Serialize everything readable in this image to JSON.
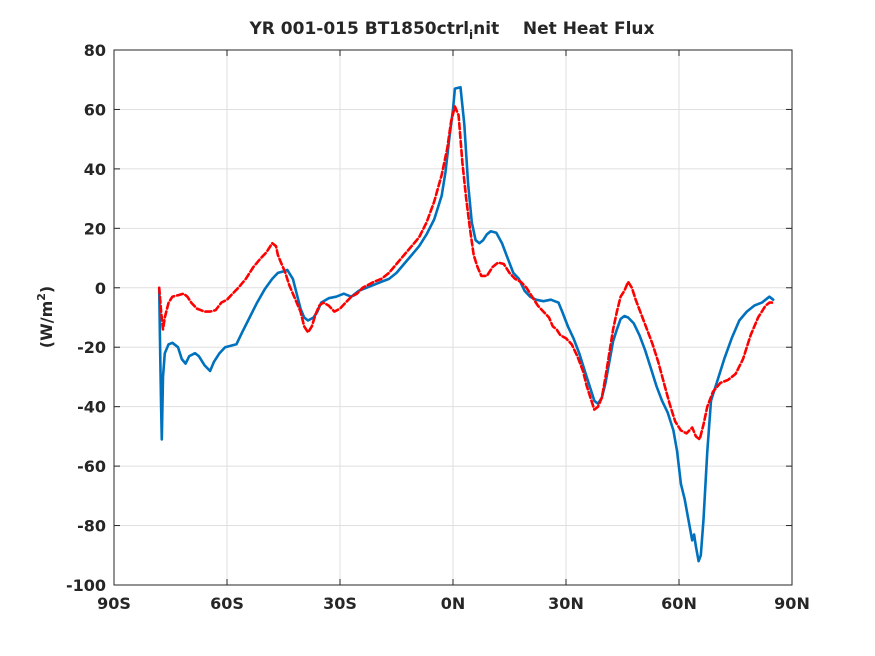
{
  "chart_data": {
    "type": "line",
    "title": "YR 001-015 BT1850ctrl_init    Net Heat Flux",
    "title_parts": {
      "main": "YR 001-015 BT1850ctrl",
      "subscript": "i",
      "rest": "nit    Net Heat Flux"
    },
    "xlabel": "",
    "ylabel": "(W/m2)",
    "ylabel_parts": {
      "before": "(W/m",
      "superscript": "2",
      "after": ")"
    },
    "xlim": [
      -90,
      90
    ],
    "ylim": [
      -100,
      80
    ],
    "grid": true,
    "x_ticks": [
      {
        "value": -90,
        "label": "90S"
      },
      {
        "value": -60,
        "label": "60S"
      },
      {
        "value": -30,
        "label": "30S"
      },
      {
        "value": 0,
        "label": "0N"
      },
      {
        "value": 30,
        "label": "30N"
      },
      {
        "value": 60,
        "label": "60N"
      },
      {
        "value": 90,
        "label": "90N"
      }
    ],
    "y_ticks": [
      {
        "value": 80,
        "label": "80"
      },
      {
        "value": 60,
        "label": "60"
      },
      {
        "value": 40,
        "label": "40"
      },
      {
        "value": 20,
        "label": "20"
      },
      {
        "value": 0,
        "label": "0"
      },
      {
        "value": -20,
        "label": "-20"
      },
      {
        "value": -40,
        "label": "-40"
      },
      {
        "value": -60,
        "label": "-60"
      },
      {
        "value": -80,
        "label": "-80"
      },
      {
        "value": -100,
        "label": "-100"
      }
    ],
    "series": [
      {
        "color": "#0072BD",
        "style": "solid",
        "points": [
          [
            -78,
            0
          ],
          [
            -77.8,
            -18
          ],
          [
            -77.5,
            -40
          ],
          [
            -77.3,
            -51
          ],
          [
            -77,
            -30
          ],
          [
            -76.5,
            -22
          ],
          [
            -75.5,
            -19
          ],
          [
            -74.5,
            -18.5
          ],
          [
            -73,
            -20
          ],
          [
            -72,
            -24
          ],
          [
            -71,
            -25.5
          ],
          [
            -70,
            -23
          ],
          [
            -68.5,
            -22
          ],
          [
            -67.5,
            -23
          ],
          [
            -66,
            -26
          ],
          [
            -64.5,
            -28
          ],
          [
            -63.5,
            -25
          ],
          [
            -62,
            -22
          ],
          [
            -60.5,
            -20
          ],
          [
            -59,
            -19.5
          ],
          [
            -57.5,
            -19
          ],
          [
            -56,
            -15
          ],
          [
            -54,
            -10
          ],
          [
            -52,
            -5
          ],
          [
            -50,
            -0.5
          ],
          [
            -48,
            3
          ],
          [
            -46.5,
            5
          ],
          [
            -45,
            5.5
          ],
          [
            -44,
            6
          ],
          [
            -42.5,
            3
          ],
          [
            -41.5,
            -2
          ],
          [
            -40.5,
            -7
          ],
          [
            -39.5,
            -10
          ],
          [
            -38.5,
            -11
          ],
          [
            -37,
            -10
          ],
          [
            -36,
            -8
          ],
          [
            -35,
            -5
          ],
          [
            -33,
            -3.5
          ],
          [
            -31,
            -3
          ],
          [
            -29,
            -2
          ],
          [
            -27,
            -3
          ],
          [
            -25,
            -1
          ],
          [
            -23,
            0
          ],
          [
            -21,
            1
          ],
          [
            -19,
            2
          ],
          [
            -17,
            3
          ],
          [
            -15,
            5
          ],
          [
            -13,
            8
          ],
          [
            -11,
            11
          ],
          [
            -9,
            14
          ],
          [
            -7,
            18
          ],
          [
            -5,
            23
          ],
          [
            -3,
            31
          ],
          [
            -2,
            39
          ],
          [
            -1,
            50
          ],
          [
            0,
            60
          ],
          [
            0.5,
            67
          ],
          [
            2,
            67.5
          ],
          [
            3,
            55
          ],
          [
            4,
            35
          ],
          [
            5,
            22
          ],
          [
            6,
            16
          ],
          [
            7,
            15
          ],
          [
            8,
            16
          ],
          [
            9,
            18
          ],
          [
            10,
            19
          ],
          [
            11.5,
            18.5
          ],
          [
            13,
            15
          ],
          [
            14.5,
            10
          ],
          [
            16,
            5
          ],
          [
            17.5,
            3
          ],
          [
            19,
            -1
          ],
          [
            20.5,
            -3
          ],
          [
            22,
            -4
          ],
          [
            24,
            -4.5
          ],
          [
            26,
            -4
          ],
          [
            27,
            -4.5
          ],
          [
            28,
            -5
          ],
          [
            29,
            -8
          ],
          [
            30.5,
            -13
          ],
          [
            32,
            -17
          ],
          [
            33.5,
            -22
          ],
          [
            35,
            -28
          ],
          [
            36.5,
            -34
          ],
          [
            37.5,
            -38
          ],
          [
            38.5,
            -39
          ],
          [
            39.5,
            -37
          ],
          [
            40.5,
            -32
          ],
          [
            41.5,
            -25
          ],
          [
            42.5,
            -18
          ],
          [
            43.5,
            -14
          ],
          [
            44.5,
            -10.5
          ],
          [
            45.5,
            -9.5
          ],
          [
            46.5,
            -10
          ],
          [
            48,
            -12
          ],
          [
            49.5,
            -16
          ],
          [
            51,
            -21
          ],
          [
            52.5,
            -27
          ],
          [
            54,
            -33
          ],
          [
            55.5,
            -38
          ],
          [
            57,
            -42
          ],
          [
            58.5,
            -48
          ],
          [
            59.5,
            -55
          ],
          [
            60.5,
            -66
          ],
          [
            61.5,
            -71
          ],
          [
            62.5,
            -78
          ],
          [
            63.5,
            -85
          ],
          [
            64,
            -83
          ],
          [
            64.5,
            -87
          ],
          [
            65.2,
            -92
          ],
          [
            65.8,
            -90
          ],
          [
            66.5,
            -78
          ],
          [
            67.5,
            -55
          ],
          [
            68.5,
            -38
          ],
          [
            70,
            -32
          ],
          [
            72,
            -24
          ],
          [
            74,
            -17
          ],
          [
            76,
            -11
          ],
          [
            78,
            -8
          ],
          [
            80,
            -6
          ],
          [
            82,
            -5
          ],
          [
            83,
            -4
          ],
          [
            84,
            -3
          ],
          [
            85,
            -4
          ]
        ]
      },
      {
        "color": "#FF0000",
        "style": "dashed",
        "points": [
          [
            -78,
            0
          ],
          [
            -77.5,
            -8
          ],
          [
            -77,
            -14
          ],
          [
            -76.5,
            -10
          ],
          [
            -75.5,
            -5
          ],
          [
            -74.5,
            -3
          ],
          [
            -73,
            -2.5
          ],
          [
            -71.5,
            -2
          ],
          [
            -70.5,
            -3
          ],
          [
            -69.5,
            -5
          ],
          [
            -68,
            -7
          ],
          [
            -66,
            -8
          ],
          [
            -64.5,
            -8
          ],
          [
            -63,
            -7.5
          ],
          [
            -61.5,
            -5
          ],
          [
            -60,
            -4
          ],
          [
            -58.5,
            -2
          ],
          [
            -57,
            0
          ],
          [
            -55,
            3
          ],
          [
            -53,
            7
          ],
          [
            -51,
            10
          ],
          [
            -49.5,
            12
          ],
          [
            -48,
            15
          ],
          [
            -47,
            14
          ],
          [
            -46.5,
            11
          ],
          [
            -45.5,
            8
          ],
          [
            -44.5,
            5
          ],
          [
            -43.5,
            1
          ],
          [
            -42.5,
            -2
          ],
          [
            -41.5,
            -5
          ],
          [
            -40.5,
            -8
          ],
          [
            -39.5,
            -13
          ],
          [
            -38.5,
            -15
          ],
          [
            -37.5,
            -13
          ],
          [
            -36.5,
            -9
          ],
          [
            -35.5,
            -6
          ],
          [
            -34.5,
            -5
          ],
          [
            -33,
            -6
          ],
          [
            -31.5,
            -8
          ],
          [
            -30,
            -7
          ],
          [
            -28.5,
            -5
          ],
          [
            -27,
            -3
          ],
          [
            -25.5,
            -2
          ],
          [
            -24,
            0
          ],
          [
            -22.5,
            1
          ],
          [
            -21,
            2
          ],
          [
            -19,
            3
          ],
          [
            -17,
            5
          ],
          [
            -15,
            8
          ],
          [
            -13,
            11
          ],
          [
            -11,
            14
          ],
          [
            -9,
            17
          ],
          [
            -7,
            22
          ],
          [
            -5,
            29
          ],
          [
            -3,
            38
          ],
          [
            -1.5,
            47
          ],
          [
            -0.5,
            56
          ],
          [
            0.5,
            61
          ],
          [
            1.5,
            58
          ],
          [
            2.5,
            42
          ],
          [
            3.5,
            30
          ],
          [
            4.5,
            20
          ],
          [
            5.5,
            11
          ],
          [
            6.5,
            7
          ],
          [
            7.5,
            4
          ],
          [
            9,
            4
          ],
          [
            10.5,
            7
          ],
          [
            12,
            8.5
          ],
          [
            13.5,
            8
          ],
          [
            15,
            5
          ],
          [
            16.5,
            3
          ],
          [
            18,
            2
          ],
          [
            19.5,
            0
          ],
          [
            21,
            -3
          ],
          [
            22.5,
            -6
          ],
          [
            24,
            -8
          ],
          [
            25.5,
            -10
          ],
          [
            26.5,
            -13
          ],
          [
            27.5,
            -14
          ],
          [
            28.5,
            -16
          ],
          [
            30,
            -17
          ],
          [
            31.5,
            -19
          ],
          [
            33,
            -23
          ],
          [
            34.5,
            -28
          ],
          [
            35.5,
            -33
          ],
          [
            36.5,
            -37
          ],
          [
            37.5,
            -41
          ],
          [
            38.5,
            -40
          ],
          [
            39.5,
            -37
          ],
          [
            40.5,
            -30
          ],
          [
            41.5,
            -22
          ],
          [
            42.5,
            -14
          ],
          [
            43.5,
            -8
          ],
          [
            44.5,
            -3
          ],
          [
            45.5,
            -1
          ],
          [
            46.5,
            2
          ],
          [
            47.5,
            0
          ],
          [
            48.5,
            -4
          ],
          [
            50,
            -9
          ],
          [
            51.5,
            -14
          ],
          [
            53,
            -19
          ],
          [
            54.5,
            -25
          ],
          [
            56,
            -32
          ],
          [
            57.5,
            -39
          ],
          [
            59,
            -45
          ],
          [
            60.5,
            -48
          ],
          [
            62,
            -49
          ],
          [
            63.5,
            -47
          ],
          [
            64.5,
            -50
          ],
          [
            65.5,
            -51
          ],
          [
            66.5,
            -46
          ],
          [
            67.5,
            -40
          ],
          [
            69,
            -35
          ],
          [
            71,
            -32
          ],
          [
            73,
            -31
          ],
          [
            75,
            -29
          ],
          [
            77,
            -24
          ],
          [
            79,
            -16
          ],
          [
            81,
            -10
          ],
          [
            83,
            -6
          ],
          [
            84,
            -5
          ],
          [
            85,
            -5
          ]
        ]
      }
    ]
  }
}
